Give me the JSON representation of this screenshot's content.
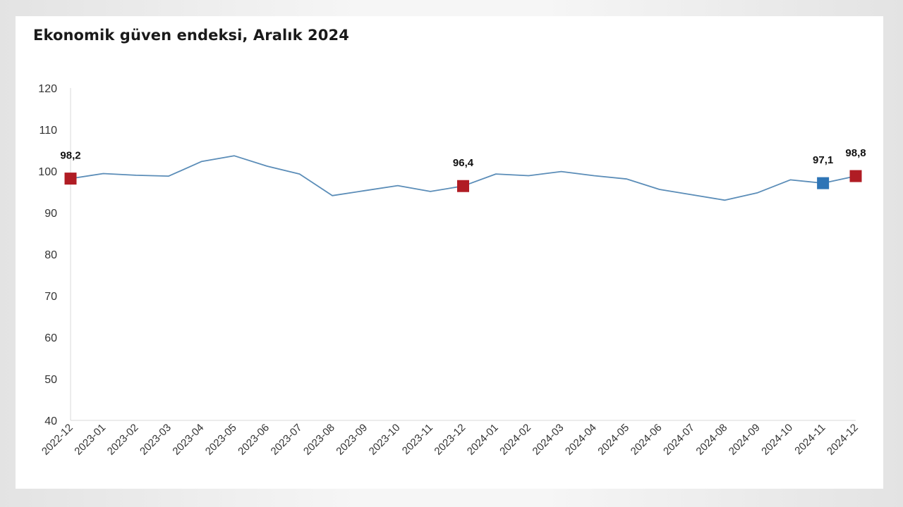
{
  "chart_data": {
    "type": "line",
    "title": "Ekonomik güven endeksi, Aralık 2024",
    "xlabel": "",
    "ylabel": "",
    "ylim": [
      40,
      120
    ],
    "yticks": [
      "40",
      "50",
      "60",
      "70",
      "80",
      "90",
      "100",
      "110",
      "120"
    ],
    "grid": false,
    "x": [
      "2022-12",
      "2023-01",
      "2023-02",
      "2023-03",
      "2023-04",
      "2023-05",
      "2023-06",
      "2023-07",
      "2023-08",
      "2023-09",
      "2023-10",
      "2023-11",
      "2023-12",
      "2024-01",
      "2024-02",
      "2024-03",
      "2024-04",
      "2024-05",
      "2024-06",
      "2024-07",
      "2024-08",
      "2024-09",
      "2024-10",
      "2024-11",
      "2024-12"
    ],
    "series": [
      {
        "values": [
          98.2,
          99.4,
          99.0,
          98.8,
          102.3,
          103.7,
          101.2,
          99.3,
          94.1,
          95.3,
          96.5,
          95.1,
          96.4,
          99.3,
          98.9,
          99.9,
          98.9,
          98.1,
          95.6,
          94.3,
          93.0,
          94.8,
          97.9,
          97.1,
          98.8
        ],
        "color": "#5b8db8"
      }
    ],
    "highlights": [
      {
        "x": "2022-12",
        "value": 98.2,
        "label": "98,2",
        "color": "#b01c24"
      },
      {
        "x": "2023-12",
        "value": 96.4,
        "label": "96,4",
        "color": "#b01c24"
      },
      {
        "x": "2024-11",
        "value": 97.1,
        "label": "97,1",
        "color": "#2e75b6"
      },
      {
        "x": "2024-12",
        "value": 98.8,
        "label": "98,8",
        "color": "#b01c24"
      }
    ]
  }
}
